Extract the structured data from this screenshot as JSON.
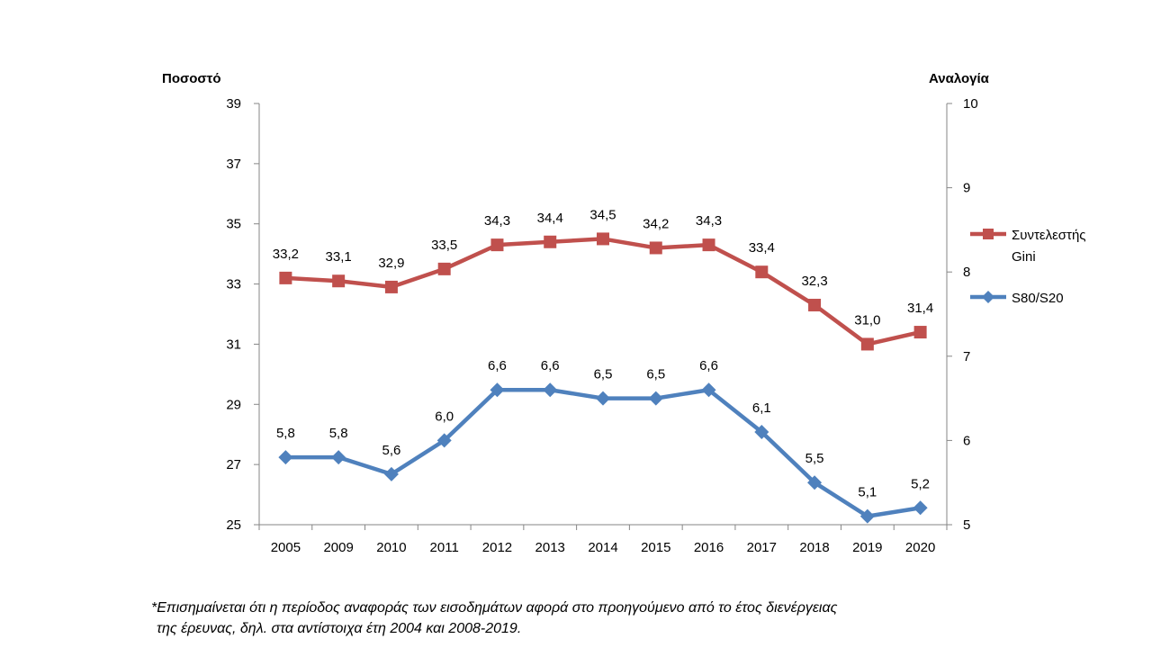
{
  "chart_data": {
    "type": "line",
    "categories": [
      "2005",
      "2009",
      "2010",
      "2011",
      "2012",
      "2013",
      "2014",
      "2015",
      "2016",
      "2017",
      "2018",
      "2019",
      "2020"
    ],
    "y_left": {
      "label": "Ποσοστό",
      "ticks": [
        25,
        27,
        29,
        31,
        33,
        35,
        37,
        39
      ],
      "range": [
        25,
        39
      ]
    },
    "y_right": {
      "label": "Αναλογία",
      "ticks": [
        5,
        6,
        7,
        8,
        9,
        10
      ],
      "range": [
        5,
        10
      ]
    },
    "series": [
      {
        "name": "Συντελεστής Gini",
        "legend_lines": [
          "Συντελεστής",
          "Gini"
        ],
        "axis": "left",
        "color": "#c0504d",
        "marker": "square",
        "values": [
          33.2,
          33.1,
          32.9,
          33.5,
          34.3,
          34.4,
          34.5,
          34.2,
          34.3,
          33.4,
          32.3,
          31.0,
          31.4
        ],
        "labels": [
          "33,2",
          "33,1",
          "32,9",
          "33,5",
          "34,3",
          "34,4",
          "34,5",
          "34,2",
          "34,3",
          "33,4",
          "32,3",
          "31,0",
          "31,4"
        ]
      },
      {
        "name": "S80/S20",
        "legend_lines": [
          "S80/S20"
        ],
        "axis": "right",
        "color": "#4f81bd",
        "marker": "diamond",
        "values": [
          5.8,
          5.8,
          5.6,
          6.0,
          6.6,
          6.6,
          6.5,
          6.5,
          6.6,
          6.1,
          5.5,
          5.1,
          5.2
        ],
        "labels": [
          "5,8",
          "5,8",
          "5,6",
          "6,0",
          "6,6",
          "6,6",
          "6,5",
          "6,5",
          "6,6",
          "6,1",
          "5,5",
          "5,1",
          "5,2"
        ]
      }
    ],
    "legend_position": "right",
    "grid": false
  },
  "footnote": {
    "line1": "*Επισημαίνεται ότι η περίοδος αναφοράς των εισοδημάτων αφορά στο προηγούμενο από το έτος διενέργειας",
    "line2": "της έρευνας, δηλ. στα αντίστοιχα έτη 2004 και 2008-2019."
  }
}
